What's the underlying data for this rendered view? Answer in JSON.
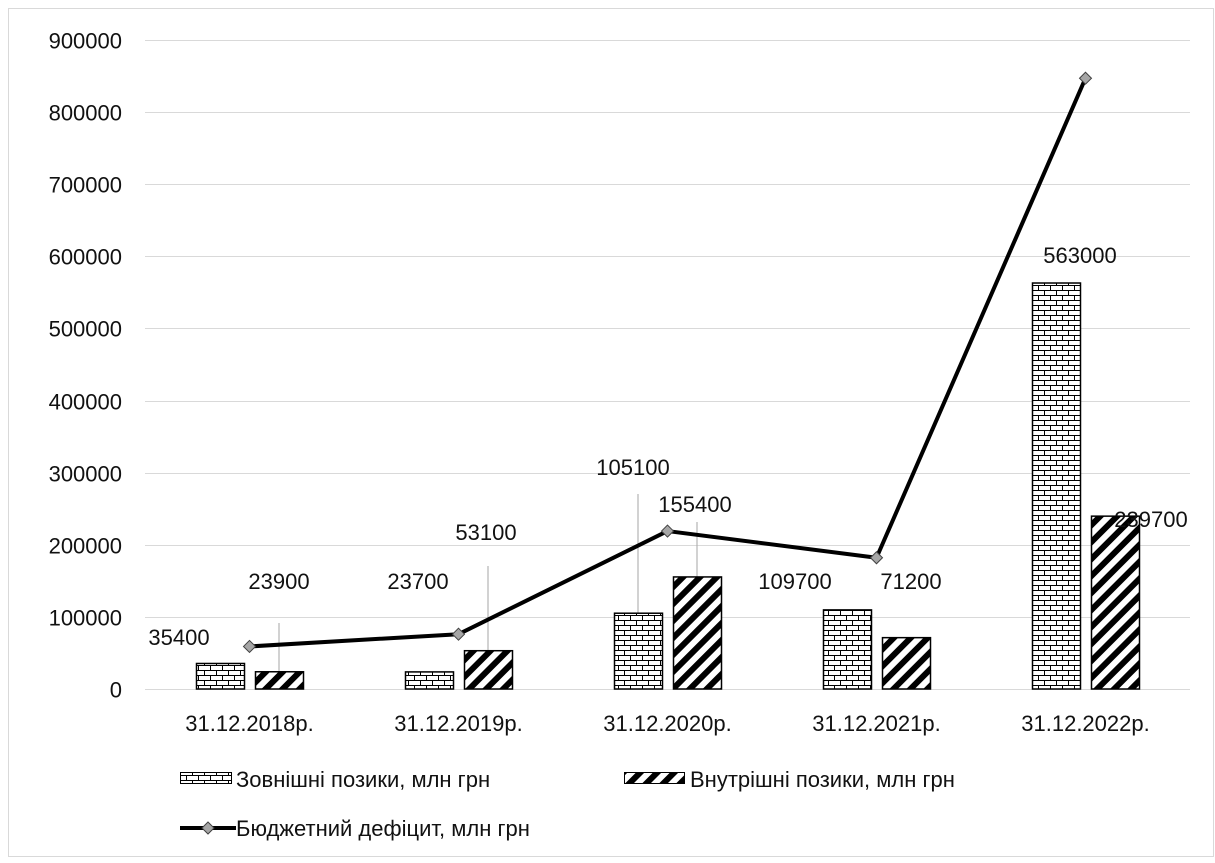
{
  "chart_data": {
    "type": "bar",
    "categories": [
      "31.12.2018р.",
      "31.12.2019р.",
      "31.12.2020р.",
      "31.12.2021р.",
      "31.12.2022р."
    ],
    "series": [
      {
        "name": "Зовнішні позики, млн грн",
        "kind": "bar",
        "pattern": "brick",
        "values": [
          35400,
          23700,
          105100,
          109700,
          563000
        ]
      },
      {
        "name": "Внутрішні позики, млн грн",
        "kind": "bar",
        "pattern": "diagonal",
        "values": [
          23900,
          53100,
          155400,
          71200,
          239700
        ]
      },
      {
        "name": "Бюджетний дефіцит, млн грн",
        "kind": "line",
        "marker": "diamond",
        "values": [
          59000,
          76000,
          219000,
          182000,
          847000
        ]
      }
    ],
    "ylim": [
      0,
      900000
    ],
    "yticks": [
      0,
      100000,
      200000,
      300000,
      400000,
      500000,
      600000,
      700000,
      800000,
      900000
    ],
    "grid": true,
    "legend_position": "bottom",
    "colors": {
      "line": "#000000",
      "marker_fill": "#a6a6a6",
      "grid": "#d9d9d9",
      "leader": "#a6a6a6"
    }
  }
}
